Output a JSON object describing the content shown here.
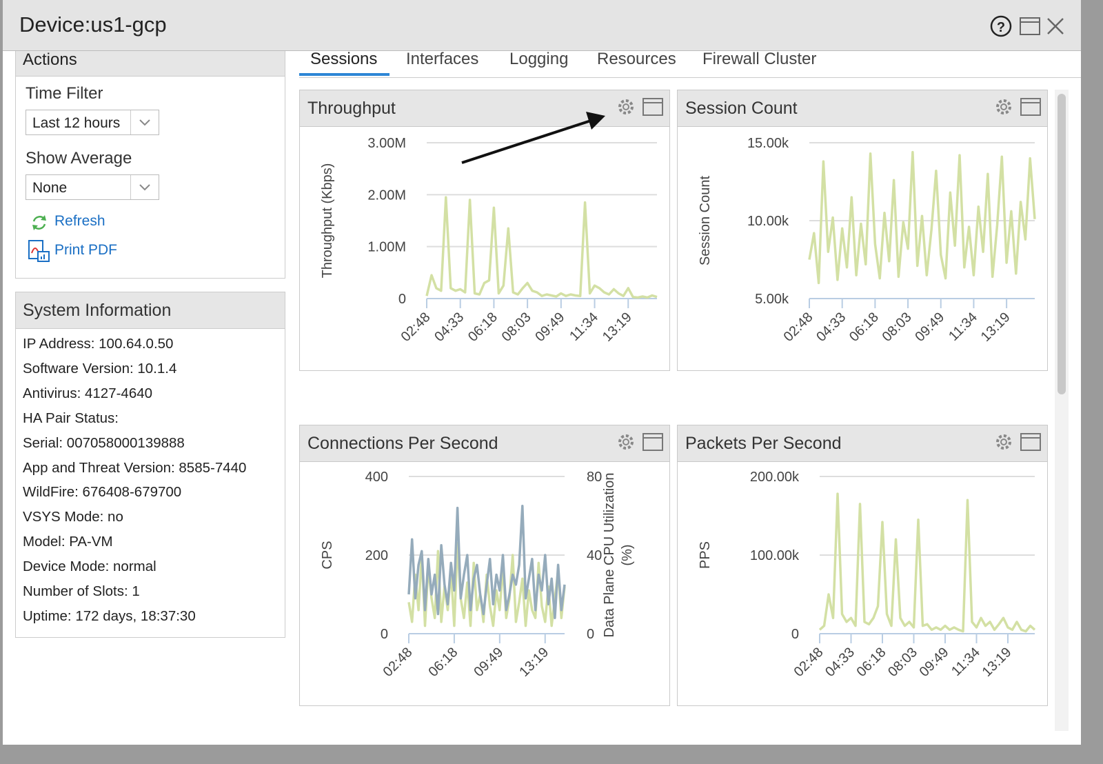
{
  "window": {
    "title": "Device:us1-gcp"
  },
  "tabs": [
    "Sessions",
    "Interfaces",
    "Logging",
    "Resources",
    "Firewall Cluster"
  ],
  "sidebar": {
    "section": "Actions",
    "time_filter_label": "Time Filter",
    "time_filter_value": "Last 12 hours",
    "show_average_label": "Show Average",
    "show_average_value": "None",
    "refresh": "Refresh",
    "print_pdf": "Print PDF"
  },
  "system_info": {
    "title": "System Information",
    "items": [
      "IP Address: 100.64.0.50",
      "Software Version: 10.1.4",
      "Antivirus: 4127-4640",
      "HA Pair Status:",
      "Serial: 007058000139888",
      "App and Threat Version: 8585-7440",
      "WildFire: 676408-679700",
      "VSYS Mode: no",
      "Model: PA-VM",
      "Device Mode: normal",
      "Number of Slots: 1",
      "Uptime: 172 days, 18:37:30"
    ]
  },
  "chart_data": [
    {
      "type": "line",
      "title": "Throughput",
      "y_label": "Throughput (Kbps)",
      "color": "#d3e0a4",
      "grid": true,
      "categories": [
        "02:48",
        null,
        null,
        null,
        null,
        null,
        null,
        "04:33",
        null,
        null,
        null,
        null,
        null,
        null,
        "06:18",
        null,
        null,
        null,
        null,
        null,
        null,
        "08:03",
        null,
        null,
        null,
        null,
        null,
        null,
        "09:49",
        null,
        null,
        null,
        null,
        null,
        null,
        "11:34",
        null,
        null,
        null,
        null,
        null,
        null,
        "13:19",
        null,
        null,
        null,
        null,
        null,
        null
      ],
      "values": [
        50000,
        450000,
        200000,
        150000,
        1950000,
        200000,
        150000,
        180000,
        120000,
        1900000,
        100000,
        80000,
        300000,
        350000,
        1750000,
        100000,
        250000,
        1350000,
        120000,
        80000,
        200000,
        300000,
        150000,
        120000,
        50000,
        80000,
        60000,
        40000,
        100000,
        50000,
        80000,
        60000,
        50000,
        1850000,
        100000,
        250000,
        200000,
        120000,
        80000,
        180000,
        100000,
        50000,
        200000,
        30000,
        20000,
        40000,
        20000,
        60000,
        30000
      ],
      "ylim": [
        0,
        3000000
      ],
      "yticks": [
        0,
        {
          "value": 1000000,
          "label": "1.00M"
        },
        {
          "value": 2000000,
          "label": "2.00M"
        },
        {
          "value": 3000000,
          "label": "3.00M"
        }
      ]
    },
    {
      "type": "line",
      "title": "Session Count",
      "y_label": "Session Count",
      "color": "#d3e0a4",
      "grid": true,
      "categories": [
        "02:48",
        null,
        null,
        null,
        null,
        null,
        null,
        "04:33",
        null,
        null,
        null,
        null,
        null,
        null,
        "06:18",
        null,
        null,
        null,
        null,
        null,
        null,
        "08:03",
        null,
        null,
        null,
        null,
        null,
        null,
        "09:49",
        null,
        null,
        null,
        null,
        null,
        null,
        "11:34",
        null,
        null,
        null,
        null,
        null,
        null,
        "13:19",
        null,
        null,
        null,
        null,
        null,
        null
      ],
      "values": [
        7500,
        9200,
        6000,
        13800,
        8000,
        10200,
        6200,
        9500,
        7000,
        11500,
        6500,
        9800,
        7200,
        14300,
        8500,
        6300,
        10500,
        7400,
        12600,
        6400,
        9900,
        8200,
        14400,
        7100,
        10300,
        6500,
        9400,
        13200,
        7800,
        6300,
        11800,
        8400,
        14200,
        7000,
        9600,
        6500,
        10900,
        8000,
        13000,
        6400,
        9700,
        14100,
        7300,
        10600,
        6600,
        11200,
        8800,
        14000,
        10100
      ],
      "ylim": [
        5000,
        15000
      ],
      "yticks": [
        {
          "value": 5000,
          "label": "5.00k"
        },
        {
          "value": 10000,
          "label": "10.00k"
        },
        {
          "value": 15000,
          "label": "15.00k"
        }
      ]
    },
    {
      "type": "line",
      "title": "Connections Per Second",
      "y_label": "CPS",
      "y2_label": "Data Plane CPU Utilization (%)",
      "grid": true,
      "categories": [
        "02:48",
        null,
        null,
        null,
        null,
        null,
        null,
        null,
        null,
        null,
        null,
        null,
        null,
        null,
        "06:18",
        null,
        null,
        null,
        null,
        null,
        null,
        null,
        null,
        null,
        null,
        null,
        null,
        null,
        "09:49",
        null,
        null,
        null,
        null,
        null,
        null,
        null,
        null,
        null,
        null,
        null,
        null,
        null,
        "13:19",
        null,
        null,
        null,
        null,
        null,
        null
      ],
      "series": [
        {
          "color": "#d3e0a4",
          "values": [
            80,
            30,
            150,
            60,
            200,
            20,
            170,
            90,
            40,
            210,
            30,
            120,
            60,
            160,
            20,
            230,
            90,
            40,
            130,
            20,
            180,
            60,
            100,
            30,
            150,
            70,
            20,
            110,
            60,
            170,
            40,
            90,
            200,
            30,
            80,
            140,
            20,
            110,
            60,
            40,
            180,
            70,
            30,
            120,
            20,
            90,
            160,
            40,
            120
          ]
        },
        {
          "color": "#95abbb",
          "axis": "y2",
          "values": [
            20,
            48,
            18,
            35,
            42,
            12,
            38,
            20,
            30,
            10,
            45,
            25,
            15,
            36,
            22,
            64,
            18,
            30,
            40,
            12,
            28,
            35,
            20,
            10,
            25,
            38,
            15,
            30,
            22,
            40,
            12,
            20,
            30,
            25,
            35,
            65,
            18,
            28,
            38,
            12,
            30,
            22,
            40,
            15,
            28,
            8,
            35,
            12,
            25
          ]
        }
      ],
      "ylim": [
        0,
        400
      ],
      "yticks": [
        0,
        200,
        400
      ],
      "y2lim": [
        0,
        80
      ],
      "y2ticks": [
        0,
        40,
        80
      ]
    },
    {
      "type": "line",
      "title": "Packets Per Second",
      "y_label": "PPS",
      "color": "#d3e0a4",
      "grid": true,
      "categories": [
        "02:48",
        null,
        null,
        null,
        null,
        null,
        null,
        "04:33",
        null,
        null,
        null,
        null,
        null,
        null,
        "06:18",
        null,
        null,
        null,
        null,
        null,
        null,
        "08:03",
        null,
        null,
        null,
        null,
        null,
        null,
        "09:49",
        null,
        null,
        null,
        null,
        null,
        null,
        "11:34",
        null,
        null,
        null,
        null,
        null,
        null,
        "13:19",
        null,
        null,
        null,
        null,
        null,
        null
      ],
      "values": [
        5000,
        10000,
        50000,
        20000,
        178000,
        25000,
        15000,
        20000,
        10000,
        165000,
        15000,
        12000,
        20000,
        35000,
        142000,
        25000,
        10000,
        120000,
        20000,
        10000,
        15000,
        8000,
        145000,
        10000,
        12000,
        5000,
        8000,
        5000,
        10000,
        5000,
        8000,
        5000,
        3000,
        170000,
        15000,
        8000,
        20000,
        10000,
        15000,
        5000,
        12000,
        20000,
        8000,
        5000,
        15000,
        5000,
        3000,
        10000,
        5000
      ],
      "ylim": [
        0,
        200000
      ],
      "yticks": [
        0,
        {
          "value": 100000,
          "label": "100.00k"
        },
        {
          "value": 200000,
          "label": "200.00k"
        }
      ]
    }
  ]
}
